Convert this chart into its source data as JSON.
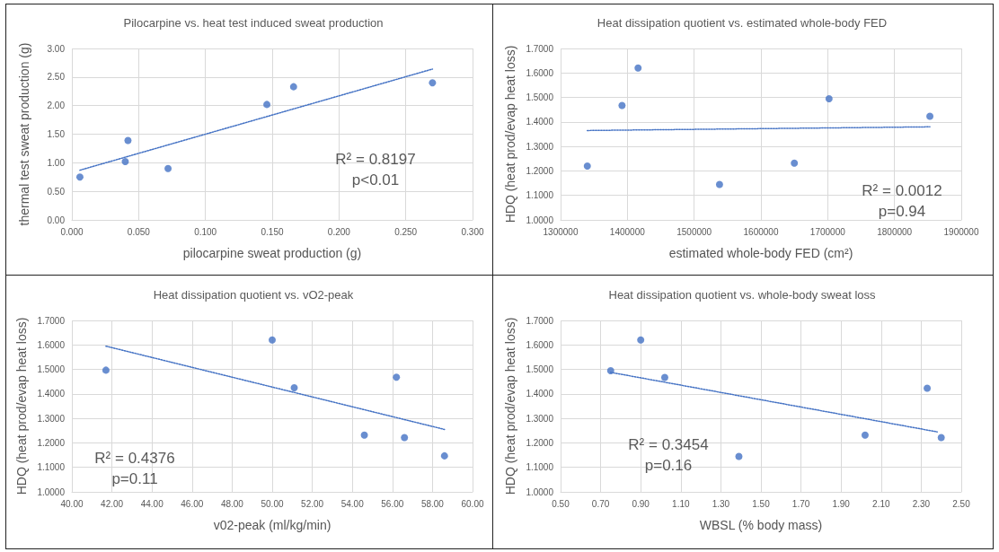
{
  "chart_data": [
    {
      "type": "scatter",
      "title": "Pilocarpine vs. heat test induced sweat production",
      "xlabel": "pilocarpine sweat production (g)",
      "ylabel": "thermal test sweat production (g)",
      "marker": "circle",
      "grid": true,
      "xlim": [
        0,
        0.3
      ],
      "xticks": [
        {
          "value": 0,
          "label": "0.000"
        },
        {
          "value": 0.05,
          "label": "0.050"
        },
        {
          "value": 0.1,
          "label": "0.100"
        },
        {
          "value": 0.15,
          "label": "0.150"
        },
        {
          "value": 0.2,
          "label": "0.200"
        },
        {
          "value": 0.25,
          "label": "0.250"
        },
        {
          "value": 0.3,
          "label": "0.300"
        }
      ],
      "ylim": [
        0,
        3
      ],
      "yticks": [
        {
          "value": 0,
          "label": "0.00"
        },
        {
          "value": 0.5,
          "label": "0.50"
        },
        {
          "value": 1,
          "label": "1.00"
        },
        {
          "value": 1.5,
          "label": "1.50"
        },
        {
          "value": 2,
          "label": "2.00"
        },
        {
          "value": 2.5,
          "label": "2.50"
        },
        {
          "value": 3,
          "label": "3.00"
        }
      ],
      "annotations": [
        "R² = 0.8197",
        "p<0.01"
      ],
      "series": [
        {
          "type": "scatter",
          "color": "#4472c4",
          "x": [
            0.006,
            0.04,
            0.042,
            0.072,
            0.146,
            0.166,
            0.27
          ],
          "values": [
            0.75,
            1.02,
            1.39,
            0.9,
            2.02,
            2.33,
            2.4
          ]
        },
        {
          "type": "line",
          "color": "#4472c4",
          "line_style": "dotted",
          "marker": "none",
          "x": [
            0.006,
            0.27
          ],
          "values": [
            0.87,
            2.64
          ]
        }
      ]
    },
    {
      "type": "scatter",
      "title": "Heat dissipation quotient vs. estimated whole-body FED",
      "xlabel": "estimated whole-body FED (cm²)",
      "ylabel": "HDQ (heat prod/evap heat loss)",
      "marker": "circle",
      "grid": true,
      "xlim": [
        1300000,
        1900000
      ],
      "xticks": [
        1300000,
        1400000,
        1500000,
        1600000,
        1700000,
        1800000,
        1900000
      ],
      "ylim": [
        1,
        1.7
      ],
      "yticks": [
        {
          "value": 1,
          "label": "1.0000"
        },
        {
          "value": 1.1,
          "label": "1.1000"
        },
        {
          "value": 1.2,
          "label": "1.2000"
        },
        {
          "value": 1.3,
          "label": "1.3000"
        },
        {
          "value": 1.4,
          "label": "1.4000"
        },
        {
          "value": 1.5,
          "label": "1.5000"
        },
        {
          "value": 1.6,
          "label": "1.6000"
        },
        {
          "value": 1.7,
          "label": "1.7000"
        }
      ],
      "annotations": [
        "R² = 0.0012",
        "p=0.94"
      ],
      "series": [
        {
          "type": "scatter",
          "color": "#4472c4",
          "x": [
            1340000,
            1392000,
            1416000,
            1538000,
            1650000,
            1702000,
            1853000
          ],
          "values": [
            1.22,
            1.467,
            1.62,
            1.145,
            1.232,
            1.495,
            1.423
          ]
        },
        {
          "type": "line",
          "color": "#4472c4",
          "line_style": "dotted",
          "marker": "none",
          "x": [
            1340000,
            1853000
          ],
          "values": [
            1.365,
            1.38
          ]
        }
      ]
    },
    {
      "type": "scatter",
      "title": "Heat dissipation quotient vs. vO2-peak",
      "xlabel": "v02-peak (ml/kg/min)",
      "ylabel": "HDQ (heat prod/evap heat loss)",
      "marker": "circle",
      "grid": true,
      "xlim": [
        40,
        60
      ],
      "xticks": [
        {
          "value": 40,
          "label": "40.00"
        },
        {
          "value": 42,
          "label": "42.00"
        },
        {
          "value": 44,
          "label": "44.00"
        },
        {
          "value": 46,
          "label": "46.00"
        },
        {
          "value": 48,
          "label": "48.00"
        },
        {
          "value": 50,
          "label": "50.00"
        },
        {
          "value": 52,
          "label": "52.00"
        },
        {
          "value": 54,
          "label": "54.00"
        },
        {
          "value": 56,
          "label": "56.00"
        },
        {
          "value": 58,
          "label": "58.00"
        },
        {
          "value": 60,
          "label": "60.00"
        }
      ],
      "ylim": [
        1,
        1.7
      ],
      "yticks": [
        {
          "value": 1,
          "label": "1.0000"
        },
        {
          "value": 1.1,
          "label": "1.1000"
        },
        {
          "value": 1.2,
          "label": "1.2000"
        },
        {
          "value": 1.3,
          "label": "1.3000"
        },
        {
          "value": 1.4,
          "label": "1.4000"
        },
        {
          "value": 1.5,
          "label": "1.5000"
        },
        {
          "value": 1.6,
          "label": "1.6000"
        },
        {
          "value": 1.7,
          "label": "1.7000"
        }
      ],
      "annotations": [
        "R² = 0.4376",
        "p=0.11"
      ],
      "series": [
        {
          "type": "scatter",
          "color": "#4472c4",
          "x": [
            41.7,
            50.0,
            51.1,
            54.6,
            56.2,
            56.6,
            58.6
          ],
          "values": [
            1.497,
            1.62,
            1.425,
            1.232,
            1.468,
            1.222,
            1.147
          ]
        },
        {
          "type": "line",
          "color": "#4472c4",
          "line_style": "dotted",
          "marker": "none",
          "x": [
            41.7,
            58.6
          ],
          "values": [
            1.595,
            1.255
          ]
        }
      ]
    },
    {
      "type": "scatter",
      "title": "Heat dissipation quotient vs. whole-body sweat loss",
      "xlabel": "WBSL (% body mass)",
      "ylabel": "HDQ (heat prod/evap heat loss)",
      "marker": "circle",
      "grid": true,
      "xlim": [
        0.5,
        2.5
      ],
      "xticks": [
        {
          "value": 0.5,
          "label": "0.50"
        },
        {
          "value": 0.7,
          "label": "0.70"
        },
        {
          "value": 0.9,
          "label": "0.90"
        },
        {
          "value": 1.1,
          "label": "1.10"
        },
        {
          "value": 1.3,
          "label": "1.30"
        },
        {
          "value": 1.5,
          "label": "1.50"
        },
        {
          "value": 1.7,
          "label": "1.70"
        },
        {
          "value": 1.9,
          "label": "1.90"
        },
        {
          "value": 2.1,
          "label": "2.10"
        },
        {
          "value": 2.3,
          "label": "2.30"
        },
        {
          "value": 2.5,
          "label": "2.50"
        }
      ],
      "ylim": [
        1,
        1.7
      ],
      "yticks": [
        {
          "value": 1,
          "label": "1.0000"
        },
        {
          "value": 1.1,
          "label": "1.1000"
        },
        {
          "value": 1.2,
          "label": "1.2000"
        },
        {
          "value": 1.3,
          "label": "1.3000"
        },
        {
          "value": 1.4,
          "label": "1.4000"
        },
        {
          "value": 1.5,
          "label": "1.5000"
        },
        {
          "value": 1.6,
          "label": "1.6000"
        },
        {
          "value": 1.7,
          "label": "1.7000"
        }
      ],
      "annotations": [
        "R² = 0.3454",
        "p=0.16"
      ],
      "series": [
        {
          "type": "scatter",
          "color": "#4472c4",
          "x": [
            0.75,
            0.9,
            1.02,
            1.39,
            2.02,
            2.33,
            2.4
          ],
          "values": [
            1.495,
            1.62,
            1.467,
            1.145,
            1.232,
            1.423,
            1.222
          ]
        },
        {
          "type": "line",
          "color": "#4472c4",
          "line_style": "dotted",
          "marker": "none",
          "x": [
            0.75,
            2.38
          ],
          "values": [
            1.488,
            1.245
          ]
        }
      ]
    }
  ]
}
